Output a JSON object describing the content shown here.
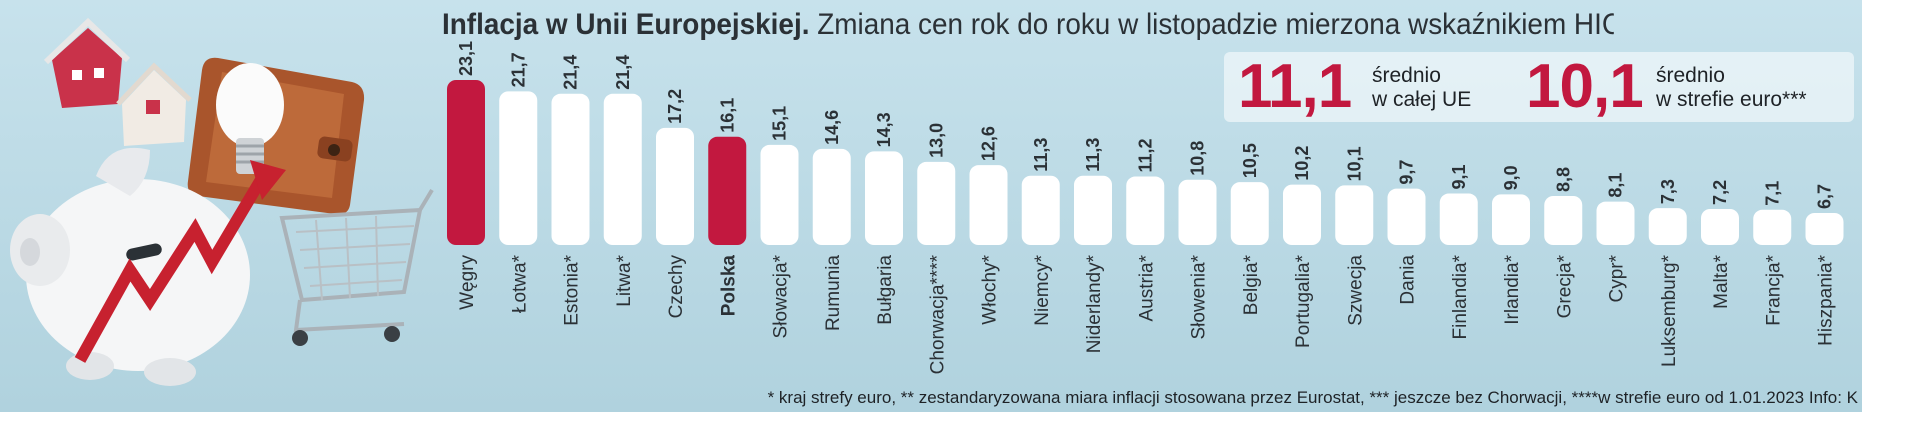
{
  "title": {
    "bold": "Inflacja w Unii Europejskiej.",
    "rest": "Zmiana cen rok do roku w listopadzie mierzona wskaźnikiem HICP**, w proc."
  },
  "averages": {
    "eu": {
      "value": "11,1",
      "line1": "średnio",
      "line2": "w całej UE"
    },
    "euro": {
      "value": "10,1",
      "line1": "średnio",
      "line2": "w strefie euro***"
    }
  },
  "footnote": "* kraj strefy euro, ** zestandaryzowana miara inflacji stosowana przez Eurostat, *** jeszcze bez Chorwacji, ****w strefie euro od 1.01.2023 Info: K",
  "colors": {
    "highlight": "#c2183f",
    "bar": "#ffffff",
    "text": "#2b3136",
    "background": "#bcdbe5"
  },
  "chart_data": {
    "type": "bar",
    "orientation": "vertical",
    "categories": [
      "Węgry",
      "Łotwa*",
      "Estonia*",
      "Litwa*",
      "Czechy",
      "Polska",
      "Słowacja*",
      "Rumunia",
      "Bułgaria",
      "Chorwacja****",
      "Włochy*",
      "Niemcy*",
      "Niderlandy*",
      "Austria*",
      "Słowenia*",
      "Belgia*",
      "Portugalia*",
      "Szwecja",
      "Dania",
      "Finlandia*",
      "Irlandia*",
      "Grecja*",
      "Cypr*",
      "Luksemburg*",
      "Malta*",
      "Francja*",
      "Hiszpania*"
    ],
    "values": [
      23.1,
      21.7,
      21.4,
      21.4,
      17.2,
      16.1,
      15.1,
      14.6,
      14.3,
      13.0,
      12.6,
      11.3,
      11.3,
      11.2,
      10.8,
      10.5,
      10.2,
      10.1,
      9.7,
      9.1,
      9.0,
      8.8,
      8.1,
      7.3,
      7.2,
      7.1,
      6.7
    ],
    "value_labels": [
      "23,1",
      "21,7",
      "21,4",
      "21,4",
      "17,2",
      "16,1",
      "15,1",
      "14,6",
      "14,3",
      "13,0",
      "12,6",
      "11,3",
      "11,3",
      "11,2",
      "10,8",
      "10,5",
      "10,2",
      "10,1",
      "9,7",
      "9,1",
      "9,0",
      "8,8",
      "8,1",
      "7,3",
      "7,2",
      "7,1",
      "6,7"
    ],
    "highlighted": [
      "Węgry",
      "Polska"
    ],
    "bold_categories": [
      "Polska"
    ],
    "ylim": [
      0,
      23.1
    ],
    "grid": false,
    "legend": "none"
  }
}
